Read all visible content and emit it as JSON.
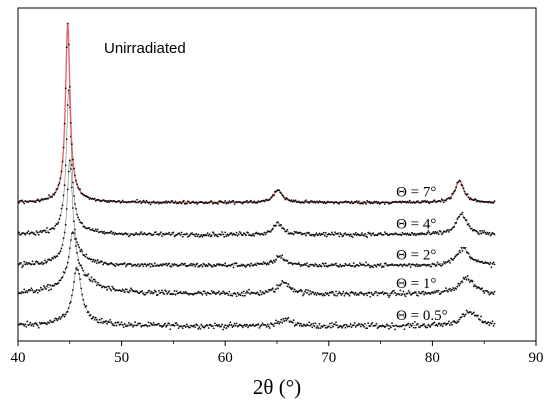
{
  "chart_data": {
    "type": "line",
    "title": "",
    "annotation": "Unirradiated",
    "xlabel": "2θ (°)",
    "ylabel": "",
    "xlim": [
      40,
      90
    ],
    "x_ticks": [
      40,
      50,
      60,
      70,
      80,
      90
    ],
    "x_tick_labels": [
      "40",
      "50",
      "60",
      "70",
      "80",
      "90"
    ],
    "y_ticks_shown": false,
    "grid": false,
    "legend": "none",
    "y_units": "arbitrary (stacked, baseline-offset patterns)",
    "series": [
      {
        "label": "Θ = 0.5°",
        "baseline": 0.0,
        "noise": 0.28,
        "peaks": [
          {
            "center": 45.7,
            "height": 4.5,
            "width": 0.45
          },
          {
            "center": 45.9,
            "height": 0.7,
            "width": 1.8
          },
          {
            "center": 65.9,
            "height": 0.55,
            "width": 0.8
          },
          {
            "center": 83.6,
            "height": 1.2,
            "width": 1.0
          }
        ]
      },
      {
        "label": "Θ = 1°",
        "baseline": 2.8,
        "noise": 0.28,
        "peaks": [
          {
            "center": 45.3,
            "height": 4.0,
            "width": 0.4
          },
          {
            "center": 45.8,
            "height": 1.6,
            "width": 1.8
          },
          {
            "center": 65.7,
            "height": 1.0,
            "width": 0.75
          },
          {
            "center": 83.3,
            "height": 1.4,
            "width": 0.9
          }
        ]
      },
      {
        "label": "Θ = 2°",
        "baseline": 5.3,
        "noise": 0.22,
        "peaks": [
          {
            "center": 45.0,
            "height": 8.5,
            "width": 0.3
          },
          {
            "center": 45.3,
            "height": 0.8,
            "width": 1.5
          },
          {
            "center": 65.3,
            "height": 0.8,
            "width": 0.6
          },
          {
            "center": 83.0,
            "height": 1.5,
            "width": 0.75
          }
        ]
      },
      {
        "label": "Θ = 4°",
        "baseline": 8.0,
        "noise": 0.22,
        "peaks": [
          {
            "center": 44.9,
            "height": 12.0,
            "width": 0.28
          },
          {
            "center": 45.2,
            "height": 0.6,
            "width": 1.3
          },
          {
            "center": 65.1,
            "height": 1.0,
            "width": 0.55
          },
          {
            "center": 82.8,
            "height": 1.8,
            "width": 0.6
          }
        ]
      },
      {
        "label": "Θ = 7°",
        "baseline": 10.8,
        "noise": 0.16,
        "fit_color": "#e05a5a",
        "peaks": [
          {
            "center": 44.8,
            "height": 15.2,
            "width": 0.26
          },
          {
            "center": 45.1,
            "height": 0.5,
            "width": 1.2
          },
          {
            "center": 65.1,
            "height": 1.1,
            "width": 0.5
          },
          {
            "center": 82.6,
            "height": 1.9,
            "width": 0.5
          }
        ]
      }
    ],
    "x_range_measured": [
      38,
      86
    ],
    "ylim": [
      -1.3,
      27.8
    ],
    "colors": {
      "points": "#111111",
      "fit": "#e05a5a",
      "axis": "#000000"
    }
  }
}
